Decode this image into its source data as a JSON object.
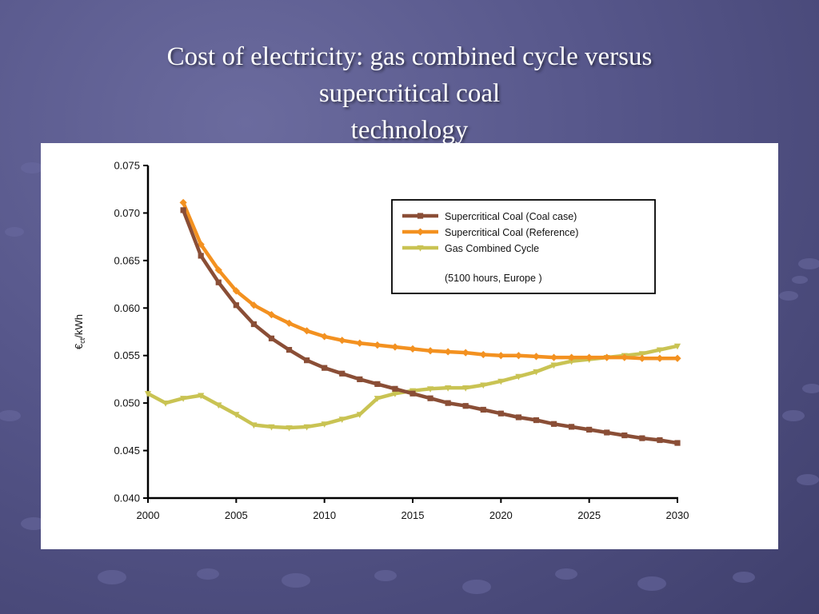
{
  "slide": {
    "title_lines": [
      "Cost of electricity: gas combined cycle versus",
      "supercritical coal",
      "technology"
    ]
  },
  "colors": {
    "background": "#56568a",
    "title": "#ffffff",
    "coal_case": "#8a4e36",
    "coal_reference": "#f39120",
    "gas": "#c9c353"
  },
  "chart_data": {
    "type": "line",
    "title": "",
    "xlabel": "",
    "ylabel": "€ct/kWh",
    "ylabel_main": "€",
    "ylabel_sub": "ct",
    "ylabel_tail": "/kWh",
    "xlim": [
      2000,
      2030
    ],
    "ylim": [
      0.04,
      0.075
    ],
    "x_ticks": [
      2000,
      2005,
      2010,
      2015,
      2020,
      2025,
      2030
    ],
    "x_tick_labels": [
      "2000",
      "2005",
      "2010",
      "2015",
      "2020",
      "2025",
      "2030"
    ],
    "y_ticks": [
      0.04,
      0.045,
      0.05,
      0.055,
      0.06,
      0.065,
      0.07,
      0.075
    ],
    "y_tick_labels": [
      "0.040",
      "0.045",
      "0.050",
      "0.055",
      "0.060",
      "0.065",
      "0.070",
      "0.075"
    ],
    "grid": false,
    "legend_position": "top-right",
    "legend_note": "(5100 hours, Europe )",
    "series": [
      {
        "name": "Supercritical Coal (Coal case)",
        "color": "#8a4e36",
        "marker": "square",
        "x": [
          2002,
          2003,
          2004,
          2005,
          2006,
          2007,
          2008,
          2009,
          2010,
          2011,
          2012,
          2013,
          2014,
          2015,
          2016,
          2017,
          2018,
          2019,
          2020,
          2021,
          2022,
          2023,
          2024,
          2025,
          2026,
          2027,
          2028,
          2029,
          2030
        ],
        "values": [
          0.0703,
          0.0655,
          0.0627,
          0.0603,
          0.0583,
          0.0568,
          0.0556,
          0.0545,
          0.0537,
          0.0531,
          0.0525,
          0.052,
          0.0515,
          0.051,
          0.0505,
          0.05,
          0.0497,
          0.0493,
          0.0489,
          0.0485,
          0.0482,
          0.0478,
          0.0475,
          0.0472,
          0.0469,
          0.0466,
          0.0463,
          0.0461,
          0.0458
        ]
      },
      {
        "name": "Supercritical Coal (Reference)",
        "color": "#f39120",
        "marker": "diamond",
        "x": [
          2002,
          2003,
          2004,
          2005,
          2006,
          2007,
          2008,
          2009,
          2010,
          2011,
          2012,
          2013,
          2014,
          2015,
          2016,
          2017,
          2018,
          2019,
          2020,
          2021,
          2022,
          2023,
          2024,
          2025,
          2026,
          2027,
          2028,
          2029,
          2030
        ],
        "values": [
          0.0711,
          0.0667,
          0.064,
          0.0618,
          0.0603,
          0.0593,
          0.0584,
          0.0576,
          0.057,
          0.0566,
          0.0563,
          0.0561,
          0.0559,
          0.0557,
          0.0555,
          0.0554,
          0.0553,
          0.0551,
          0.055,
          0.055,
          0.0549,
          0.0548,
          0.0548,
          0.0548,
          0.0548,
          0.0548,
          0.0547,
          0.0547,
          0.0547
        ]
      },
      {
        "name": "Gas Combined Cycle",
        "color": "#c9c353",
        "marker": "triangle",
        "x": [
          2000,
          2001,
          2002,
          2003,
          2004,
          2005,
          2006,
          2007,
          2008,
          2009,
          2010,
          2011,
          2012,
          2013,
          2014,
          2015,
          2016,
          2017,
          2018,
          2019,
          2020,
          2021,
          2022,
          2023,
          2024,
          2025,
          2026,
          2027,
          2028,
          2029,
          2030
        ],
        "values": [
          0.051,
          0.05,
          0.0505,
          0.0508,
          0.0498,
          0.0488,
          0.0477,
          0.0475,
          0.0474,
          0.0475,
          0.0478,
          0.0483,
          0.0488,
          0.0505,
          0.051,
          0.0513,
          0.0515,
          0.0516,
          0.0516,
          0.0519,
          0.0523,
          0.0528,
          0.0533,
          0.054,
          0.0544,
          0.0546,
          0.0548,
          0.055,
          0.0552,
          0.0556,
          0.056
        ]
      }
    ]
  }
}
